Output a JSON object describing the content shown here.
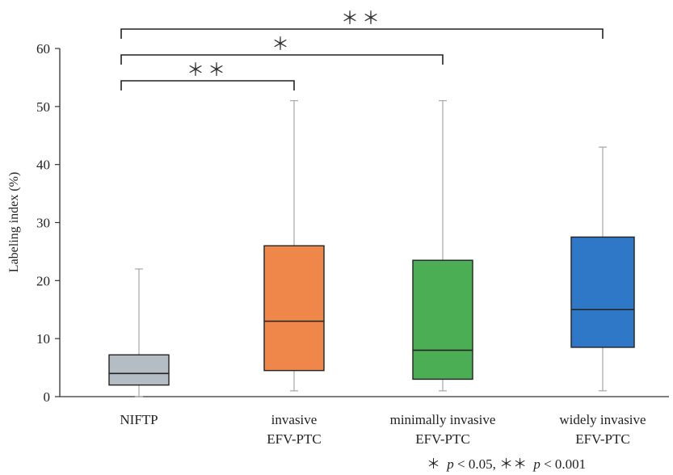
{
  "chart_data": {
    "type": "box",
    "ylabel": "Labeling index (%)",
    "ylim": [
      0,
      60
    ],
    "yticks": [
      "0",
      "10",
      "20",
      "30",
      "40",
      "50",
      "60"
    ],
    "categories": [
      {
        "line1": "NIFTP",
        "line2": ""
      },
      {
        "line1": "invasive",
        "line2": "EFV-PTC"
      },
      {
        "line1": "minimally invasive",
        "line2": "EFV-PTC"
      },
      {
        "line1": "widely invasive",
        "line2": "EFV-PTC"
      }
    ],
    "boxes": [
      {
        "min": 0,
        "q1": 2,
        "median": 4,
        "q3": 7.2,
        "max": 22,
        "color": "#b4bcc4"
      },
      {
        "min": 1,
        "q1": 4.5,
        "median": 13,
        "q3": 26,
        "max": 51,
        "color": "#f0874a"
      },
      {
        "min": 1,
        "q1": 3,
        "median": 8,
        "q3": 23.5,
        "max": 51,
        "color": "#4cae54"
      },
      {
        "min": 1,
        "q1": 8.5,
        "median": 15,
        "q3": 27.5,
        "max": 43,
        "color": "#2f78c8"
      }
    ],
    "significance": [
      {
        "from": 0,
        "to": 1,
        "label": "＊＊"
      },
      {
        "from": 0,
        "to": 2,
        "label": "＊"
      },
      {
        "from": 0,
        "to": 3,
        "label": "＊＊"
      }
    ],
    "footnote": {
      "a_star": "＊",
      "a_p": "p",
      "a_text": " < 0.05, ",
      "b_star": "＊＊",
      "b_p": "p",
      "b_text": " < 0.001"
    }
  }
}
